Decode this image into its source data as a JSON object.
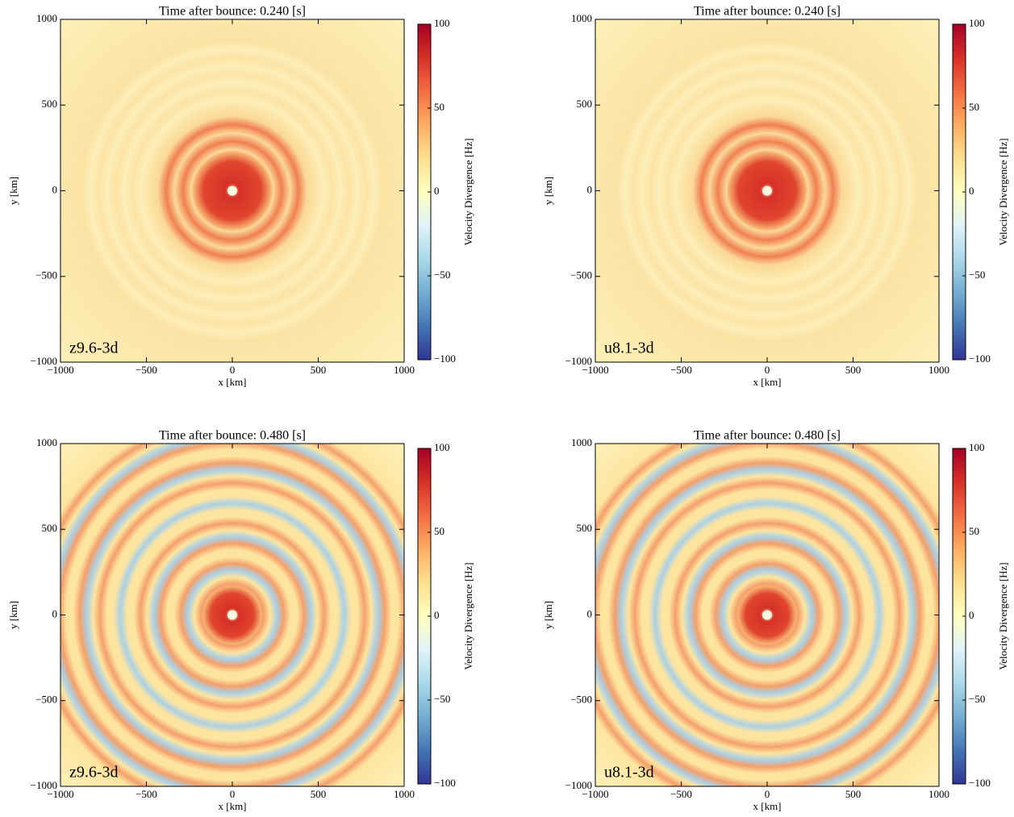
{
  "chart_data": [
    {
      "type": "heatmap",
      "title": "Time after bounce: 0.240 [s]",
      "xlabel": "x [km]",
      "ylabel": "y [km]",
      "annotation": "z9.6-3d",
      "xlim": [
        -1000,
        1000
      ],
      "ylim": [
        -1000,
        1000
      ],
      "xticks": [
        {
          "value": -1000,
          "label": "−1000"
        },
        {
          "value": -500,
          "label": "−500"
        },
        0,
        500,
        1000
      ],
      "yticks": [
        {
          "value": -1000,
          "label": "−1000"
        },
        {
          "value": -500,
          "label": "−500"
        },
        0,
        500,
        1000
      ],
      "colorbar": {
        "label": "Velocity Divergence [Hz]",
        "lim": [
          -100,
          100
        ],
        "ticks": [
          {
            "value": -100,
            "label": "−100"
          },
          {
            "value": -50,
            "label": "−50"
          },
          0,
          50,
          100
        ],
        "colors": [
          "#313695",
          "#4575b4",
          "#74add1",
          "#abd9e9",
          "#e0f3f8",
          "#ffffbf",
          "#fee090",
          "#fdae61",
          "#f46d43",
          "#d73027",
          "#a50026"
        ]
      }
    },
    {
      "type": "heatmap",
      "title": "Time after bounce: 0.240 [s]",
      "xlabel": "x [km]",
      "ylabel": "y [km]",
      "annotation": "u8.1-3d",
      "xlim": [
        -1000,
        1000
      ],
      "ylim": [
        -1000,
        1000
      ],
      "xticks": [
        {
          "value": -1000,
          "label": "−1000"
        },
        {
          "value": -500,
          "label": "−500"
        },
        0,
        500,
        1000
      ],
      "yticks": [
        {
          "value": -1000,
          "label": "−1000"
        },
        {
          "value": -500,
          "label": "−500"
        },
        0,
        500,
        1000
      ],
      "colorbar": {
        "label": "Velocity Divergence [Hz]",
        "lim": [
          -100,
          100
        ],
        "ticks": [
          {
            "value": -100,
            "label": "−100"
          },
          {
            "value": -50,
            "label": "−50"
          },
          0,
          50,
          100
        ],
        "colors": [
          "#313695",
          "#4575b4",
          "#74add1",
          "#abd9e9",
          "#e0f3f8",
          "#ffffbf",
          "#fee090",
          "#fdae61",
          "#f46d43",
          "#d73027",
          "#a50026"
        ]
      }
    },
    {
      "type": "heatmap",
      "title": "Time after bounce: 0.480 [s]",
      "xlabel": "x [km]",
      "ylabel": "y [km]",
      "annotation": "z9.6-3d",
      "xlim": [
        -1000,
        1000
      ],
      "ylim": [
        -1000,
        1000
      ],
      "xticks": [
        {
          "value": -1000,
          "label": "−1000"
        },
        {
          "value": -500,
          "label": "−500"
        },
        0,
        500,
        1000
      ],
      "yticks": [
        {
          "value": -1000,
          "label": "−1000"
        },
        {
          "value": -500,
          "label": "−500"
        },
        0,
        500,
        1000
      ],
      "colorbar": {
        "label": "Velocity Divergence [Hz]",
        "lim": [
          -100,
          100
        ],
        "ticks": [
          {
            "value": -100,
            "label": "−100"
          },
          {
            "value": -50,
            "label": "−50"
          },
          0,
          50,
          100
        ],
        "colors": [
          "#313695",
          "#4575b4",
          "#74add1",
          "#abd9e9",
          "#e0f3f8",
          "#ffffbf",
          "#fee090",
          "#fdae61",
          "#f46d43",
          "#d73027",
          "#a50026"
        ]
      }
    },
    {
      "type": "heatmap",
      "title": "Time after bounce: 0.480 [s]",
      "xlabel": "x [km]",
      "ylabel": "y [km]",
      "annotation": "u8.1-3d",
      "xlim": [
        -1000,
        1000
      ],
      "ylim": [
        -1000,
        1000
      ],
      "xticks": [
        {
          "value": -1000,
          "label": "−1000"
        },
        {
          "value": -500,
          "label": "−500"
        },
        0,
        500,
        1000
      ],
      "yticks": [
        {
          "value": -1000,
          "label": "−1000"
        },
        {
          "value": -500,
          "label": "−500"
        },
        0,
        500,
        1000
      ],
      "colorbar": {
        "label": "Velocity Divergence [Hz]",
        "lim": [
          -100,
          100
        ],
        "ticks": [
          {
            "value": -100,
            "label": "−100"
          },
          {
            "value": -50,
            "label": "−50"
          },
          0,
          50,
          100
        ],
        "colors": [
          "#313695",
          "#4575b4",
          "#74add1",
          "#abd9e9",
          "#e0f3f8",
          "#ffffbf",
          "#fee090",
          "#fdae61",
          "#f46d43",
          "#d73027",
          "#a50026"
        ]
      }
    }
  ]
}
